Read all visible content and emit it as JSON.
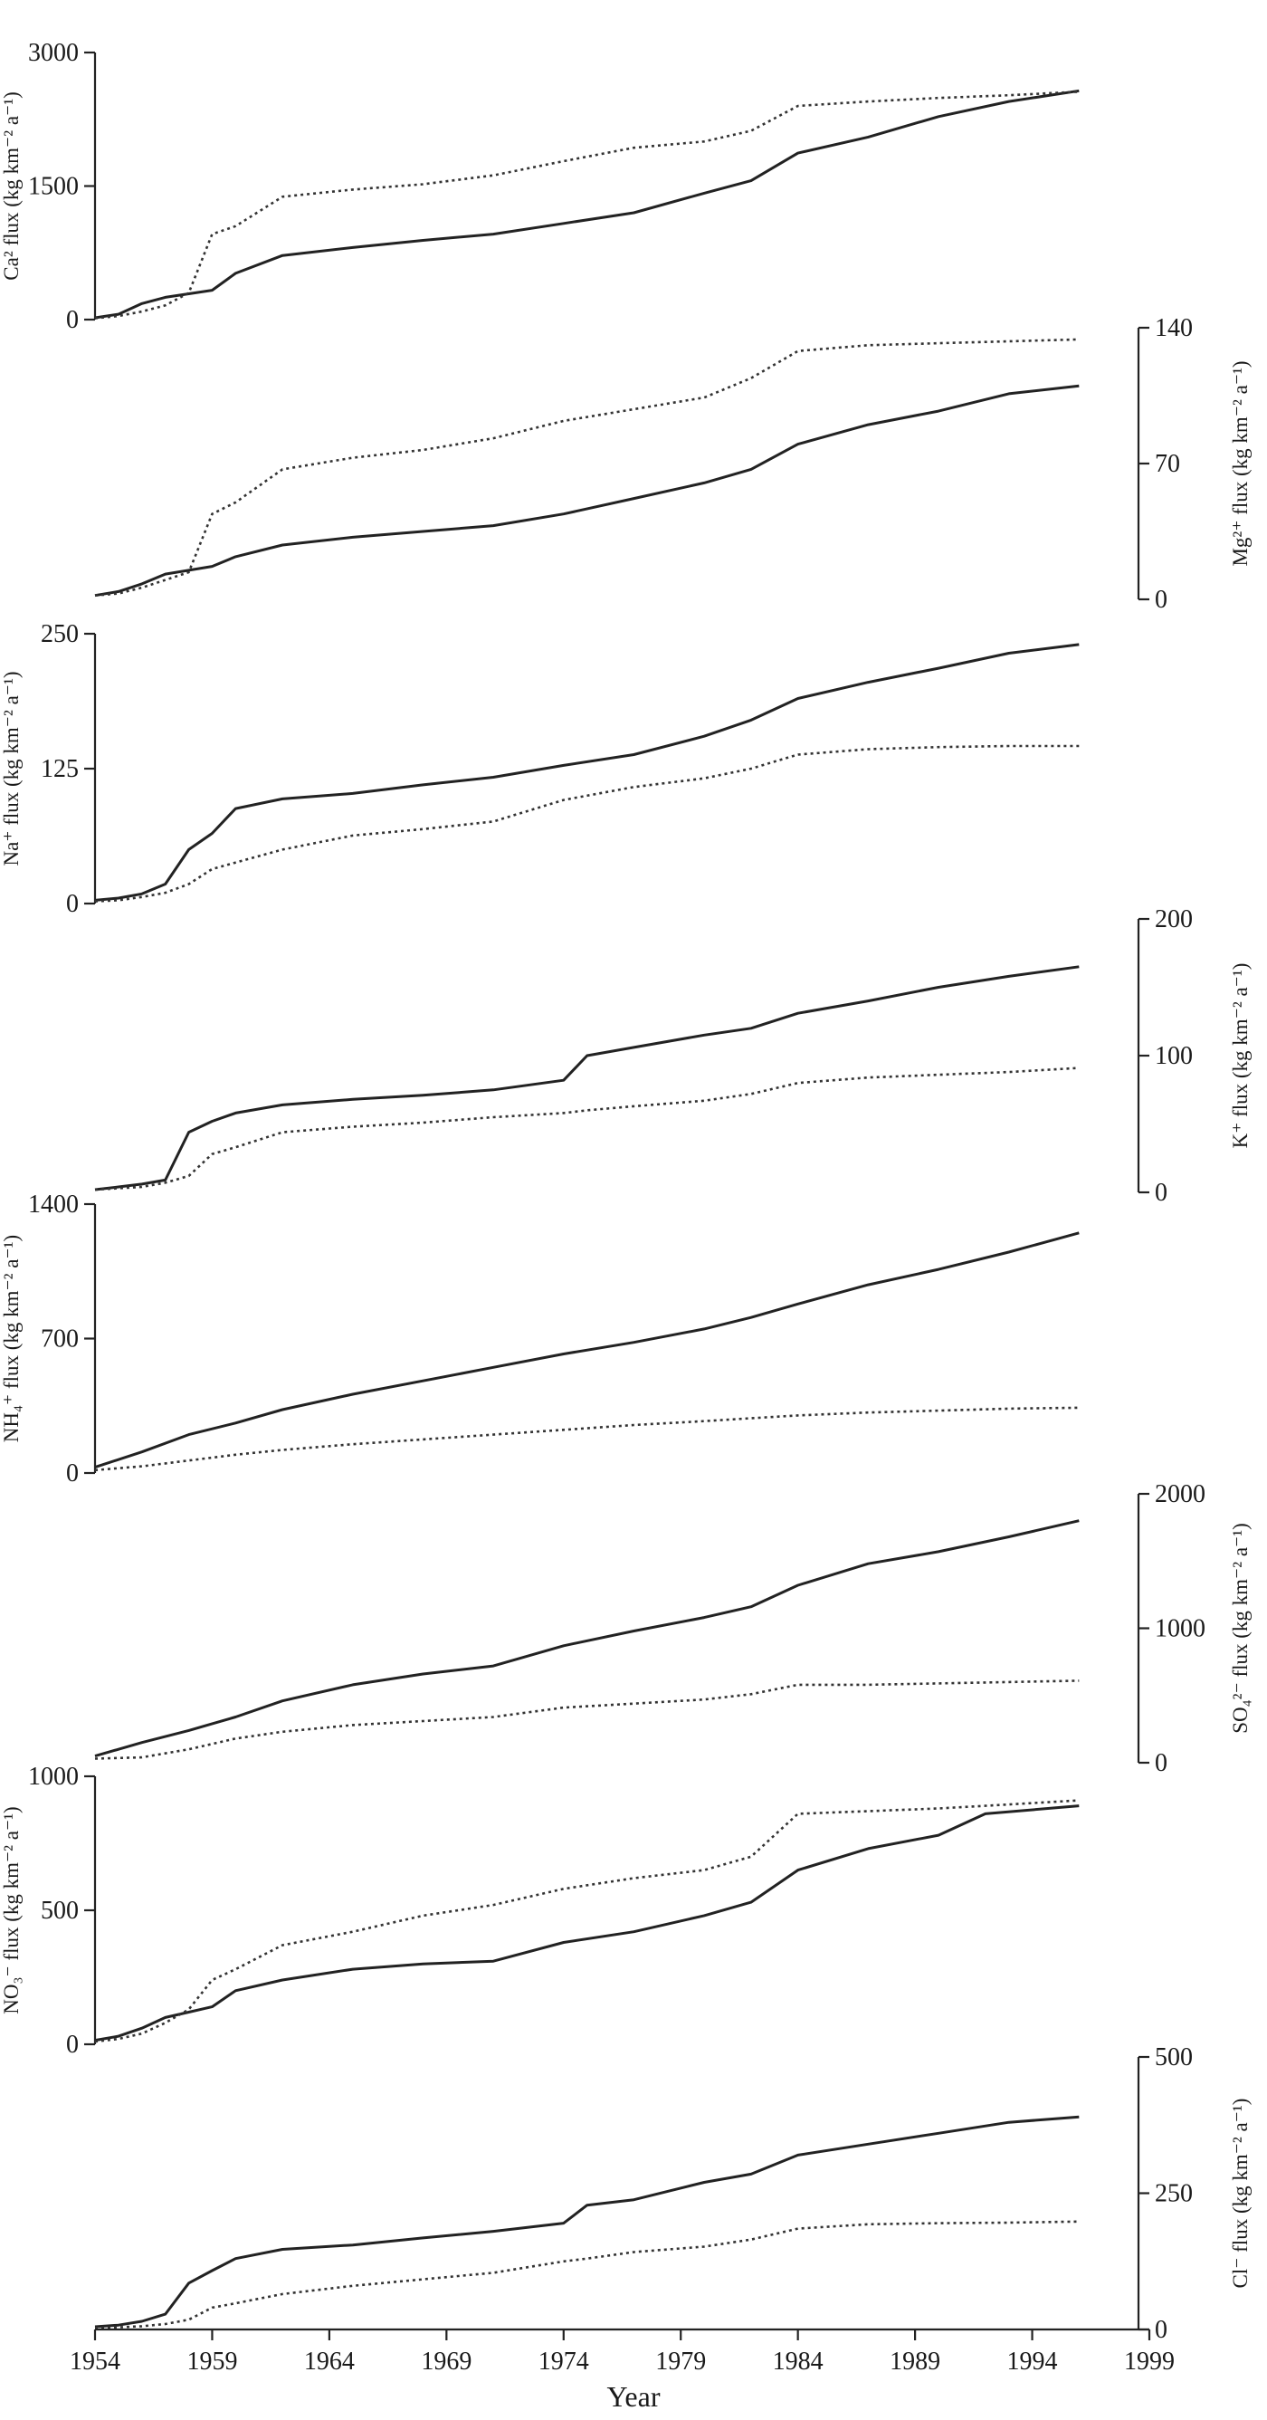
{
  "chart_data": [
    {
      "type": "line",
      "ylabel": "Ca² flux (kg km⁻² a⁻¹)",
      "yaxis_side": "left",
      "ylim": [
        0,
        3000
      ],
      "yticks": [
        0,
        1500,
        3000
      ],
      "x": [
        1954,
        1955,
        1956,
        1957,
        1958,
        1959,
        1960,
        1962,
        1965,
        1968,
        1971,
        1974,
        1977,
        1980,
        1982,
        1984,
        1987,
        1990,
        1993,
        1996
      ],
      "series": [
        {
          "style": "solid",
          "values": [
            20,
            60,
            180,
            250,
            290,
            330,
            520,
            720,
            810,
            890,
            960,
            1080,
            1200,
            1420,
            1560,
            1870,
            2050,
            2280,
            2450,
            2570
          ]
        },
        {
          "style": "dotted",
          "values": [
            15,
            40,
            90,
            160,
            300,
            960,
            1050,
            1380,
            1460,
            1520,
            1620,
            1780,
            1930,
            2000,
            2120,
            2400,
            2450,
            2490,
            2520,
            2560
          ]
        }
      ]
    },
    {
      "type": "line",
      "ylabel": "Mg²⁺ flux (kg km⁻² a⁻¹)",
      "yaxis_side": "right",
      "ylim": [
        0,
        140
      ],
      "yticks": [
        0,
        70,
        140
      ],
      "x": [
        1954,
        1955,
        1956,
        1957,
        1958,
        1959,
        1960,
        1962,
        1965,
        1968,
        1971,
        1974,
        1977,
        1980,
        1982,
        1984,
        1987,
        1990,
        1993,
        1996
      ],
      "series": [
        {
          "style": "solid",
          "values": [
            2,
            4,
            8,
            13,
            15,
            17,
            22,
            28,
            32,
            35,
            38,
            44,
            52,
            60,
            67,
            80,
            90,
            97,
            106,
            110
          ]
        },
        {
          "style": "dotted",
          "values": [
            2,
            3,
            6,
            10,
            14,
            44,
            50,
            67,
            73,
            77,
            83,
            92,
            98,
            104,
            114,
            128,
            131,
            132,
            133,
            134
          ]
        }
      ]
    },
    {
      "type": "line",
      "ylabel": "Na⁺ flux (kg km⁻² a⁻¹)",
      "yaxis_side": "left",
      "ylim": [
        0,
        250
      ],
      "yticks": [
        0,
        125,
        250
      ],
      "x": [
        1954,
        1955,
        1956,
        1957,
        1958,
        1959,
        1960,
        1962,
        1965,
        1968,
        1971,
        1974,
        1977,
        1980,
        1982,
        1984,
        1987,
        1990,
        1993,
        1996
      ],
      "series": [
        {
          "style": "solid",
          "values": [
            3,
            5,
            9,
            18,
            50,
            65,
            88,
            97,
            102,
            110,
            117,
            128,
            138,
            155,
            170,
            190,
            205,
            218,
            232,
            240
          ]
        },
        {
          "style": "dotted",
          "values": [
            2,
            3,
            6,
            10,
            18,
            32,
            38,
            50,
            63,
            69,
            76,
            96,
            108,
            116,
            125,
            138,
            143,
            145,
            146,
            146
          ]
        }
      ]
    },
    {
      "type": "line",
      "ylabel": "K⁺ flux (kg km⁻² a⁻¹)",
      "yaxis_side": "right",
      "ylim": [
        0,
        200
      ],
      "yticks": [
        0,
        100,
        200
      ],
      "x": [
        1954,
        1955,
        1956,
        1957,
        1958,
        1959,
        1960,
        1962,
        1965,
        1968,
        1971,
        1974,
        1975,
        1977,
        1980,
        1982,
        1984,
        1987,
        1990,
        1993,
        1996
      ],
      "series": [
        {
          "style": "solid",
          "values": [
            2,
            4,
            6,
            9,
            44,
            52,
            58,
            64,
            68,
            71,
            75,
            82,
            100,
            106,
            115,
            120,
            131,
            140,
            150,
            158,
            165
          ]
        },
        {
          "style": "dotted",
          "values": [
            2,
            3,
            4,
            7,
            12,
            28,
            33,
            44,
            48,
            51,
            55,
            58,
            60,
            63,
            67,
            72,
            80,
            84,
            86,
            88,
            91
          ]
        }
      ]
    },
    {
      "type": "line",
      "ylabel": "NH₄⁺ flux (kg km⁻² a⁻¹)",
      "yaxis_side": "left",
      "ylim": [
        0,
        1400
      ],
      "yticks": [
        0,
        700,
        1400
      ],
      "x": [
        1954,
        1956,
        1958,
        1960,
        1962,
        1965,
        1968,
        1971,
        1974,
        1977,
        1980,
        1982,
        1984,
        1987,
        1990,
        1993,
        1996
      ],
      "series": [
        {
          "style": "solid",
          "values": [
            30,
            110,
            200,
            260,
            330,
            410,
            480,
            550,
            620,
            680,
            750,
            810,
            880,
            980,
            1060,
            1150,
            1250
          ]
        },
        {
          "style": "dotted",
          "values": [
            15,
            35,
            65,
            95,
            120,
            150,
            175,
            200,
            225,
            250,
            270,
            285,
            300,
            315,
            325,
            335,
            340
          ]
        }
      ]
    },
    {
      "type": "line",
      "ylabel": "SO₄²⁻ flux (kg km⁻² a⁻¹)",
      "yaxis_side": "right",
      "ylim": [
        0,
        2000
      ],
      "yticks": [
        0,
        1000,
        2000
      ],
      "x": [
        1954,
        1956,
        1958,
        1960,
        1962,
        1965,
        1968,
        1971,
        1974,
        1977,
        1980,
        1982,
        1984,
        1987,
        1990,
        1993,
        1996
      ],
      "series": [
        {
          "style": "solid",
          "values": [
            50,
            150,
            240,
            340,
            460,
            580,
            660,
            720,
            870,
            980,
            1080,
            1160,
            1320,
            1480,
            1570,
            1680,
            1800
          ]
        },
        {
          "style": "dotted",
          "values": [
            30,
            40,
            100,
            180,
            230,
            280,
            310,
            340,
            410,
            440,
            470,
            510,
            580,
            580,
            590,
            600,
            610
          ]
        }
      ]
    },
    {
      "type": "line",
      "ylabel": "NO₃⁻ flux (kg km⁻² a⁻¹)",
      "yaxis_side": "left",
      "ylim": [
        0,
        1000
      ],
      "yticks": [
        0,
        500,
        1000
      ],
      "x": [
        1954,
        1955,
        1956,
        1957,
        1958,
        1959,
        1960,
        1962,
        1965,
        1968,
        1971,
        1974,
        1977,
        1980,
        1982,
        1984,
        1987,
        1990,
        1992,
        1996
      ],
      "series": [
        {
          "style": "solid",
          "values": [
            15,
            30,
            60,
            100,
            120,
            140,
            200,
            240,
            280,
            300,
            310,
            380,
            420,
            480,
            530,
            650,
            730,
            780,
            860,
            890
          ]
        },
        {
          "style": "dotted",
          "values": [
            10,
            20,
            40,
            80,
            130,
            240,
            280,
            370,
            420,
            480,
            520,
            580,
            620,
            650,
            700,
            860,
            870,
            880,
            890,
            910
          ]
        }
      ]
    },
    {
      "type": "line",
      "ylabel": "Cl⁻ flux (kg km⁻² a⁻¹)",
      "yaxis_side": "right",
      "ylim": [
        0,
        500
      ],
      "yticks": [
        0,
        250,
        500
      ],
      "xlabel": "Year",
      "xlim": [
        1954,
        1999
      ],
      "xticks": [
        1954,
        1959,
        1964,
        1969,
        1974,
        1979,
        1984,
        1989,
        1994,
        1999
      ],
      "x": [
        1954,
        1955,
        1956,
        1957,
        1958,
        1959,
        1960,
        1962,
        1965,
        1968,
        1971,
        1974,
        1975,
        1977,
        1980,
        1982,
        1984,
        1987,
        1990,
        1993,
        1996
      ],
      "series": [
        {
          "style": "solid",
          "values": [
            5,
            8,
            15,
            28,
            85,
            108,
            130,
            147,
            155,
            168,
            180,
            195,
            228,
            238,
            270,
            285,
            320,
            340,
            360,
            380,
            390
          ]
        },
        {
          "style": "dotted",
          "values": [
            3,
            4,
            6,
            10,
            18,
            40,
            48,
            65,
            80,
            92,
            104,
            125,
            130,
            142,
            152,
            165,
            185,
            193,
            195,
            196,
            198
          ]
        }
      ]
    }
  ]
}
